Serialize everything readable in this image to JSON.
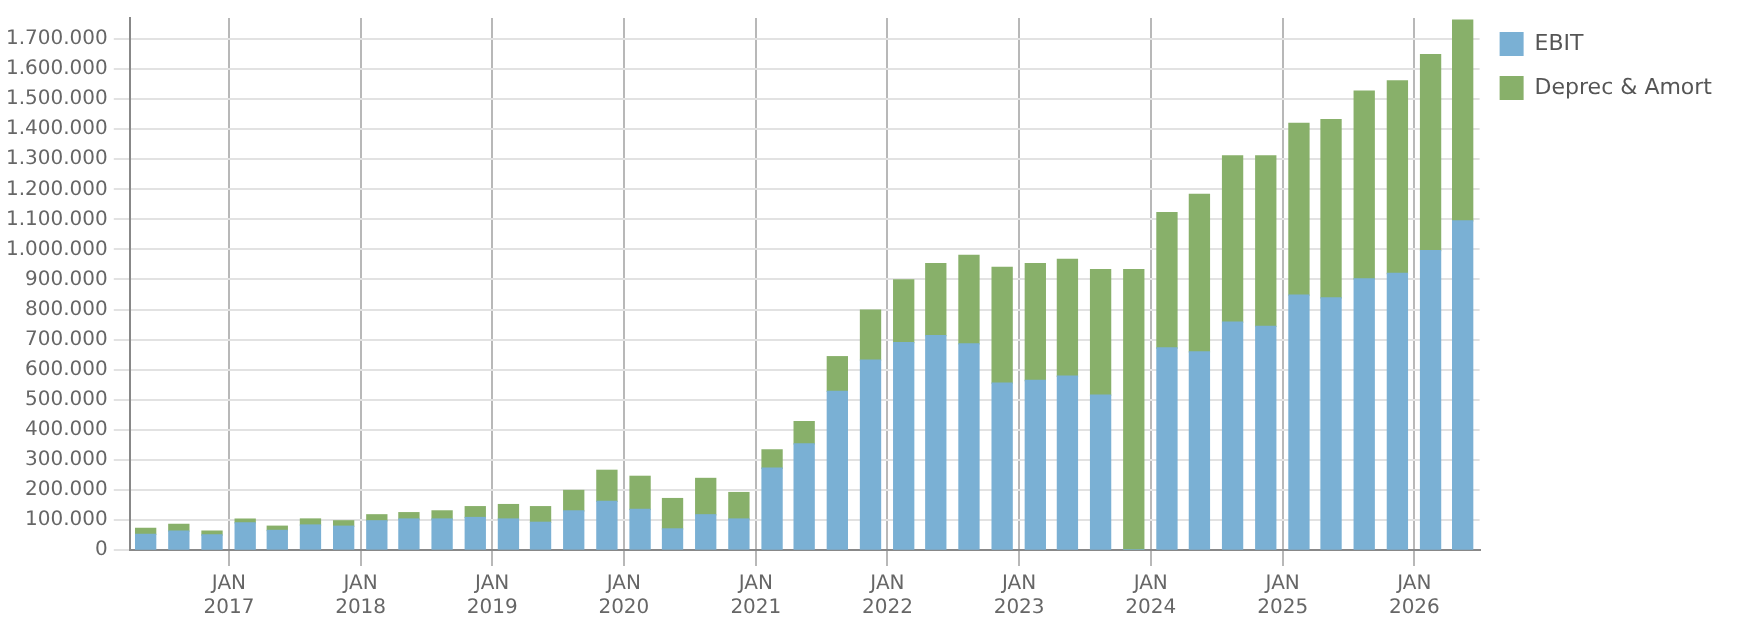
{
  "chart_data": {
    "type": "bar",
    "stacked": true,
    "x": [
      "2016-05-15",
      "2016-08-15",
      "2016-11-15",
      "2017-02-15",
      "2017-05-15",
      "2017-08-15",
      "2017-11-15",
      "2018-02-15",
      "2018-05-15",
      "2018-08-15",
      "2018-11-15",
      "2019-02-15",
      "2019-05-15",
      "2019-08-15",
      "2019-11-15",
      "2020-02-15",
      "2020-05-15",
      "2020-08-15",
      "2020-11-15",
      "2021-02-15",
      "2021-05-15",
      "2021-08-15",
      "2021-11-15",
      "2022-02-15",
      "2022-05-15",
      "2022-08-15",
      "2022-11-15",
      "2023-02-15",
      "2023-05-15",
      "2023-08-15",
      "2023-11-15",
      "2024-02-15",
      "2024-05-15",
      "2024-08-15",
      "2024-11-15",
      "2025-02-15",
      "2025-05-15",
      "2025-08-15",
      "2025-11-15",
      "2026-02-15",
      "2026-05-15"
    ],
    "series": [
      {
        "name": "EBIT",
        "color": "#7ab0d4",
        "values": [
          52000,
          63000,
          50000,
          90000,
          65000,
          83000,
          79000,
          97000,
          103000,
          103000,
          108000,
          103000,
          92000,
          130000,
          162000,
          135000,
          70000,
          117000,
          103000,
          272000,
          353000,
          528000,
          632000,
          690000,
          713000,
          686000,
          555000,
          564000,
          578000,
          515000,
          0,
          672000,
          659000,
          758000,
          744000,
          848000,
          839000,
          902000,
          920000,
          996000,
          1095000
        ]
      },
      {
        "name": "Deprec & Amort",
        "color": "#88b06a",
        "values": [
          20000,
          22000,
          13000,
          13000,
          14000,
          20000,
          18000,
          20000,
          21000,
          27000,
          36000,
          48000,
          52000,
          68000,
          103000,
          110000,
          101000,
          121000,
          88000,
          61000,
          74000,
          115000,
          166000,
          209000,
          240000,
          294000,
          385000,
          389000,
          389000,
          418000,
          933000,
          450000,
          524000,
          553000,
          567000,
          571000,
          593000,
          625000,
          641000,
          652000,
          668000
        ]
      }
    ],
    "xlim": [
      "2016-04-01",
      "2026-07-01"
    ],
    "xticks": [
      {
        "value": "2017-01-01",
        "label": "JAN 2017"
      },
      {
        "value": "2018-01-01",
        "label": "JAN 2018"
      },
      {
        "value": "2019-01-01",
        "label": "JAN 2019"
      },
      {
        "value": "2020-01-01",
        "label": "JAN 2020"
      },
      {
        "value": "2021-01-01",
        "label": "JAN 2021"
      },
      {
        "value": "2022-01-01",
        "label": "JAN 2022"
      },
      {
        "value": "2023-01-01",
        "label": "JAN 2023"
      },
      {
        "value": "2024-01-01",
        "label": "JAN 2024"
      },
      {
        "value": "2025-01-01",
        "label": "JAN 2025"
      },
      {
        "value": "2026-01-01",
        "label": "JAN 2026"
      }
    ],
    "ylim": [
      0,
      1770000
    ],
    "yticks": [
      0,
      {
        "value": 100000,
        "label": "100.000"
      },
      {
        "value": 200000,
        "label": "200.000"
      },
      {
        "value": 300000,
        "label": "300.000"
      },
      {
        "value": 400000,
        "label": "400.000"
      },
      {
        "value": 500000,
        "label": "500.000"
      },
      {
        "value": 600000,
        "label": "600.000"
      },
      {
        "value": 700000,
        "label": "700.000"
      },
      {
        "value": 800000,
        "label": "800.000"
      },
      {
        "value": 900000,
        "label": "900.000"
      },
      {
        "value": 1000000,
        "label": "1.000.000"
      },
      {
        "value": 1100000,
        "label": "1.100.000"
      },
      {
        "value": 1200000,
        "label": "1.200.000"
      },
      {
        "value": 1300000,
        "label": "1.300.000"
      },
      {
        "value": 1400000,
        "label": "1.400.000"
      },
      {
        "value": 1500000,
        "label": "1.500.000"
      },
      {
        "value": 1600000,
        "label": "1.600.000"
      },
      {
        "value": 1700000,
        "label": "1.700.000"
      }
    ],
    "grid": true,
    "legend": "top right"
  }
}
